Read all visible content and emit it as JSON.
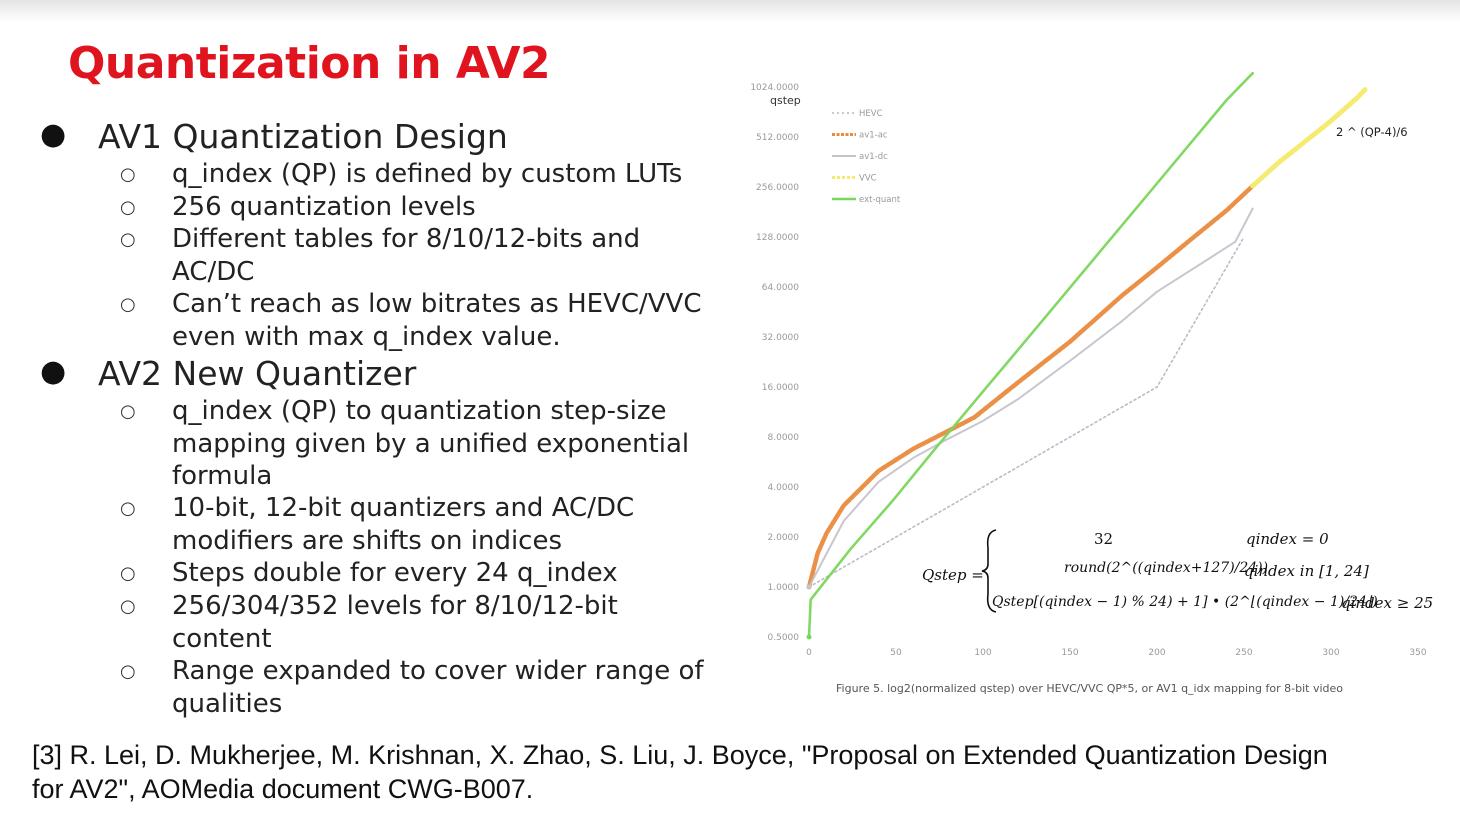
{
  "slide": {
    "title": "Quantization in AV2",
    "sections": [
      {
        "heading": "AV1 Quantization Design",
        "items": [
          [
            "q_index (QP) is defined by custom LUTs"
          ],
          [
            "256 quantization levels"
          ],
          [
            "Different tables for 8/10/12-bits and",
            "AC/DC"
          ],
          [
            "Can’t reach as low bitrates as HEVC/VVC",
            "even with max q_index value."
          ]
        ]
      },
      {
        "heading": "AV2 New Quantizer",
        "items": [
          [
            "q_index (QP) to quantization step-size",
            "mapping given by a unified exponential",
            "formula"
          ],
          [
            "10-bit, 12-bit quantizers and AC/DC",
            "modifiers are shifts on indices"
          ],
          [
            "Steps double for every 24 q_index"
          ],
          [
            "256/304/352 levels for 8/10/12-bit",
            "content"
          ],
          [
            "Range expanded to cover wider range of",
            "qualities"
          ]
        ]
      }
    ],
    "reference": [
      "[3] R. Lei, D. Mukherjee, M. Krishnan, X. Zhao, S. Liu, J. Boyce, \"Proposal on Extended Quantization Design",
      "for AV2\", AOMedia document CWG-B007."
    ]
  },
  "formula": {
    "lhs": "Qstep =",
    "case1_value": "32",
    "case1_cond": "qindex = 0",
    "case2_value": "round(2^((qindex+127)/24))",
    "case2_cond": "qindex in [1, 24]",
    "case3_value": "Qstep[(qindex − 1) % 24) + 1] • (2^⌊(qindex − 1)/24⌋)",
    "case3_cond": "qindex ≥ 25"
  },
  "chart_data": {
    "type": "line",
    "ylabel": "qstep",
    "y_scale": "log2",
    "ylim": [
      0.5,
      1024
    ],
    "xlim": [
      0,
      350
    ],
    "x_ticks": [
      "0",
      "50",
      "100",
      "150",
      "200",
      "250",
      "300",
      "350"
    ],
    "y_ticks": [
      "0.5000",
      "1.0000",
      "2.0000",
      "4.0000",
      "8.0000",
      "16.0000",
      "32.0000",
      "64.0000",
      "128.0000",
      "256.0000",
      "512.0000",
      "1024.0000"
    ],
    "annotation": "2 ^ (QP-4)/6",
    "caption": "Figure 5. log2(normalized qstep) over HEVC/VVC QP*5, or AV1 q_idx mapping for 8-bit video",
    "legend_position": "top-left",
    "series": [
      {
        "name": "HEVC",
        "color": "#b9b6c6",
        "style": "dotted",
        "x": [
          0,
          50,
          100,
          150,
          200,
          250
        ],
        "y": [
          1.0,
          2.0,
          4.0,
          8.0,
          16.0,
          128.0
        ]
      },
      {
        "name": "av1-ac",
        "color": "#e98a3d",
        "style": "thick",
        "x": [
          0,
          5,
          10,
          20,
          40,
          60,
          80,
          95,
          120,
          150,
          180,
          200,
          220,
          240,
          255
        ],
        "y": [
          1.0,
          1.6,
          2.1,
          3.1,
          5.0,
          6.8,
          8.7,
          10.5,
          17.0,
          30.0,
          57.0,
          84.0,
          125.0,
          185.0,
          260.0
        ]
      },
      {
        "name": "av1-dc",
        "color": "#c6c3cc",
        "style": "thin",
        "x": [
          0,
          20,
          40,
          60,
          80,
          100,
          120,
          150,
          180,
          200,
          230,
          245,
          255
        ],
        "y": [
          1.0,
          2.5,
          4.3,
          6.0,
          7.8,
          10.0,
          13.5,
          23.0,
          40.0,
          60.0,
          95.0,
          120.0,
          190.0
        ]
      },
      {
        "name": "VVC",
        "color": "#f6ea6a",
        "style": "dotted",
        "x": [
          255,
          270,
          285,
          300,
          315,
          320
        ],
        "y": [
          260.0,
          360.0,
          480.0,
          640.0,
          880.0,
          1000.0
        ]
      },
      {
        "name": "ext-quant",
        "color": "#7ad65a",
        "style": "solid",
        "x": [
          0,
          1,
          24,
          48,
          72,
          96,
          120,
          144,
          168,
          192,
          216,
          240,
          255
        ],
        "y": [
          0.5,
          0.84,
          1.7,
          3.3,
          6.7,
          13.4,
          26.7,
          53.4,
          106.8,
          213.6,
          427.0,
          855.0,
          1240.0
        ]
      }
    ]
  }
}
